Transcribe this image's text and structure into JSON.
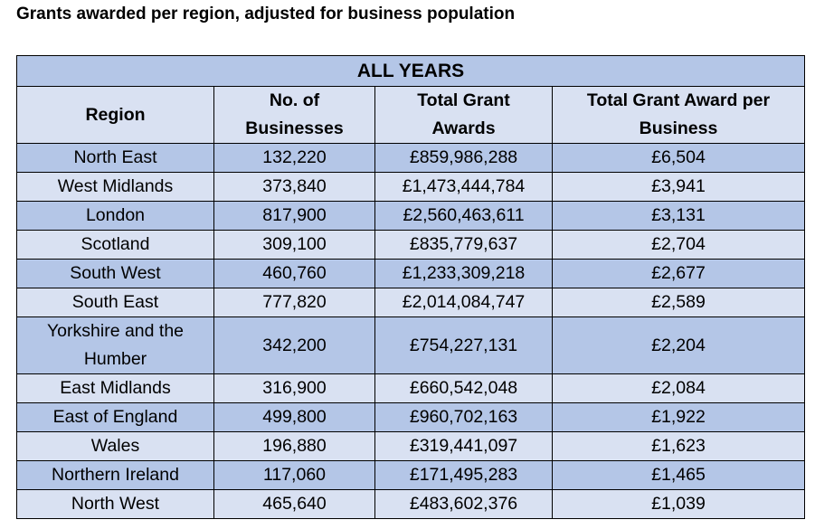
{
  "title": "Grants awarded per region, adjusted for business population",
  "table": {
    "banner": "ALL YEARS",
    "headers": {
      "region": [
        "Region"
      ],
      "businesses": [
        "No. of",
        "Businesses"
      ],
      "total": [
        "Total Grant",
        "Awards"
      ],
      "per_business": [
        "Total Grant Award per",
        "Business"
      ]
    },
    "rows": [
      {
        "region": "North East",
        "businesses": "132,220",
        "total": "£859,986,288",
        "per_business": "£6,504"
      },
      {
        "region": "West Midlands",
        "businesses": "373,840",
        "total": "£1,473,444,784",
        "per_business": "£3,941"
      },
      {
        "region": "London",
        "businesses": "817,900",
        "total": "£2,560,463,611",
        "per_business": "£3,131"
      },
      {
        "region": "Scotland",
        "businesses": "309,100",
        "total": "£835,779,637",
        "per_business": "£2,704"
      },
      {
        "region": "South West",
        "businesses": "460,760",
        "total": "£1,233,309,218",
        "per_business": "£2,677"
      },
      {
        "region": "South East",
        "businesses": "777,820",
        "total": "£2,014,084,747",
        "per_business": "£2,589"
      },
      {
        "region": "Yorkshire and the Humber",
        "businesses": "342,200",
        "total": "£754,227,131",
        "per_business": "£2,204"
      },
      {
        "region": "East Midlands",
        "businesses": "316,900",
        "total": "£660,542,048",
        "per_business": "£2,084"
      },
      {
        "region": "East of England",
        "businesses": "499,800",
        "total": "£960,702,163",
        "per_business": "£1,922"
      },
      {
        "region": "Wales",
        "businesses": "196,880",
        "total": "£319,441,097",
        "per_business": "£1,623"
      },
      {
        "region": "Northern Ireland",
        "businesses": "117,060",
        "total": "£171,495,283",
        "per_business": "£1,465"
      },
      {
        "region": "North West",
        "businesses": "465,640",
        "total": "£483,602,376",
        "per_business": "£1,039"
      }
    ]
  },
  "colors": {
    "row_dark": "#b4c6e7",
    "row_light": "#d9e1f2",
    "border": "#000000"
  }
}
